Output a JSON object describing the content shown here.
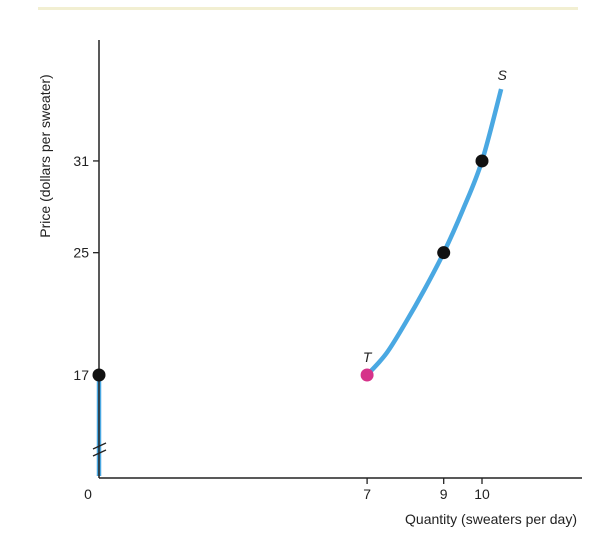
{
  "chart_data": {
    "type": "line",
    "title": "",
    "xlabel": "Quantity (sweaters per day)",
    "ylabel": "Price (dollars per sweater)",
    "x_ticks": [
      {
        "value": 0,
        "label": "0",
        "color": "#222222"
      },
      {
        "value": 7,
        "label": "7",
        "color": "#d6338a"
      },
      {
        "value": 9,
        "label": "9",
        "color": "#222222"
      },
      {
        "value": 10,
        "label": "10",
        "color": "#222222"
      }
    ],
    "y_ticks": [
      {
        "value": 17,
        "label": "17",
        "color": "#d6338a"
      },
      {
        "value": 25,
        "label": "25",
        "color": "#222222"
      },
      {
        "value": 31,
        "label": "31",
        "color": "#222222"
      }
    ],
    "y_axis_break": true,
    "series": [
      {
        "name": "S",
        "color": "#4aa8e2",
        "segments": [
          {
            "points": [
              {
                "x": 0,
                "y": 0
              },
              {
                "x": 0,
                "y": 17
              }
            ]
          },
          {
            "points": [
              {
                "x": 7,
                "y": 17
              },
              {
                "x": 7.5,
                "y": 18.4
              },
              {
                "x": 8,
                "y": 20.4
              },
              {
                "x": 8.5,
                "y": 22.6
              },
              {
                "x": 9,
                "y": 25
              },
              {
                "x": 9.5,
                "y": 27.8
              },
              {
                "x": 10,
                "y": 31
              },
              {
                "x": 10.5,
                "y": 35.7
              }
            ]
          }
        ]
      }
    ],
    "points": [
      {
        "x": 0,
        "y": 17,
        "color": "#111111"
      },
      {
        "x": 9,
        "y": 25,
        "color": "#111111"
      },
      {
        "x": 10,
        "y": 31,
        "color": "#111111"
      },
      {
        "x": 7,
        "y": 17,
        "color": "#d6338a",
        "label": "T"
      }
    ],
    "curve_label": "S",
    "colors": {
      "accent": "#4aa8e2",
      "highlight": "#d6338a",
      "point": "#111111",
      "axis": "#222222",
      "top_rule": "#f2efd2"
    }
  }
}
